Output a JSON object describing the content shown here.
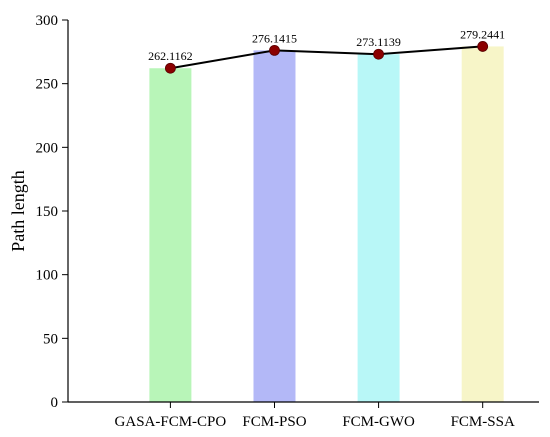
{
  "chart_data": {
    "type": "bar",
    "categories": [
      "GASA-FCM-CPO",
      "FCM-PSO",
      "FCM-GWO",
      "FCM-SSA"
    ],
    "values": [
      262.1162,
      276.1415,
      273.1139,
      279.2441
    ],
    "data_labels": [
      "262.1162",
      "276.1415",
      "273.1139",
      "279.2441"
    ],
    "overlay_line": true,
    "title": "",
    "xlabel": "",
    "ylabel": "Path length",
    "ylim": [
      0,
      300
    ],
    "yticks": [
      0,
      50,
      100,
      150,
      200,
      250,
      300
    ],
    "grid": false,
    "legend": "none",
    "colors": {
      "bars": [
        "#b8f5b8",
        "#b3b8f7",
        "#b8f7f7",
        "#f7f5c8"
      ],
      "line": "#000000",
      "marker": "#8b0000"
    }
  }
}
